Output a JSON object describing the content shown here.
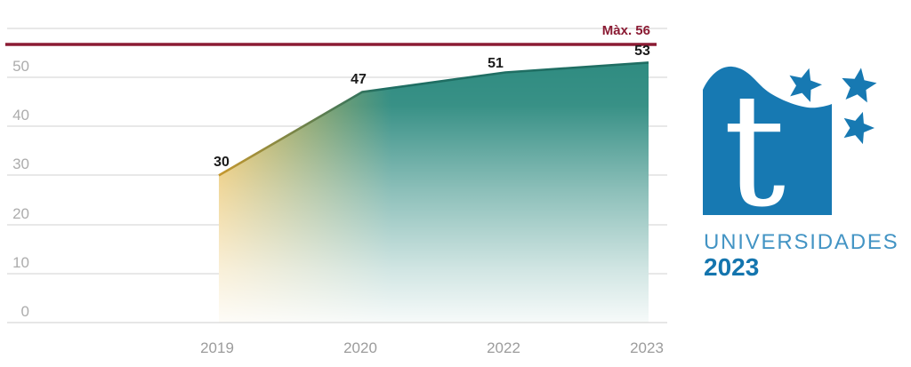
{
  "chart_data": {
    "type": "area",
    "categories": [
      "2019",
      "2020",
      "2022",
      "2023"
    ],
    "values": [
      30,
      47,
      51,
      53
    ],
    "value_labels": [
      "30",
      "47",
      "51",
      "53"
    ],
    "max_line": {
      "label": "Màx. 56",
      "value": 56,
      "color": "#8b1b33"
    },
    "yticks": [
      "0",
      "10",
      "20",
      "30",
      "40",
      "50"
    ],
    "ylim": [
      0,
      60
    ],
    "grid": true,
    "legend": "none",
    "colors": {
      "area_gradient_start": "#e5b94e",
      "area_gradient_end": "#2e8b80",
      "line_gradient_start": "#c6982f",
      "line_gradient_end": "#1f6e63",
      "max_line": "#8b1b33",
      "gridline": "#dbdbdb"
    }
  },
  "logo": {
    "glyph": "t",
    "title": "UNIVERSIDADES",
    "year": "2023",
    "colors": {
      "brand_blue": "#1779b2",
      "title_blue": "#4394c4",
      "year_blue": "#1475ae"
    },
    "icons": {
      "star": "★"
    }
  }
}
